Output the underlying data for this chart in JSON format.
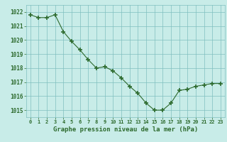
{
  "x": [
    0,
    1,
    2,
    3,
    4,
    5,
    6,
    7,
    8,
    9,
    10,
    11,
    12,
    13,
    14,
    15,
    16,
    17,
    18,
    19,
    20,
    21,
    22,
    23
  ],
  "y": [
    1021.8,
    1021.6,
    1021.6,
    1021.8,
    1020.6,
    1019.9,
    1019.3,
    1018.6,
    1018.0,
    1018.1,
    1017.8,
    1017.3,
    1016.7,
    1016.2,
    1015.5,
    1015.0,
    1015.0,
    1015.5,
    1016.4,
    1016.5,
    1016.7,
    1016.8,
    1016.9,
    1016.9
  ],
  "line_color": "#2d6a2d",
  "marker_color": "#2d6a2d",
  "bg_color": "#c8ece8",
  "grid_color": "#7fbfbf",
  "xlabel": "Graphe pression niveau de la mer (hPa)",
  "xlabel_color": "#2d6a2d",
  "tick_color": "#2d6a2d",
  "ylim": [
    1014.5,
    1022.5
  ],
  "yticks": [
    1015,
    1016,
    1017,
    1018,
    1019,
    1020,
    1021,
    1022
  ],
  "xticks": [
    0,
    1,
    2,
    3,
    4,
    5,
    6,
    7,
    8,
    9,
    10,
    11,
    12,
    13,
    14,
    15,
    16,
    17,
    18,
    19,
    20,
    21,
    22,
    23
  ]
}
